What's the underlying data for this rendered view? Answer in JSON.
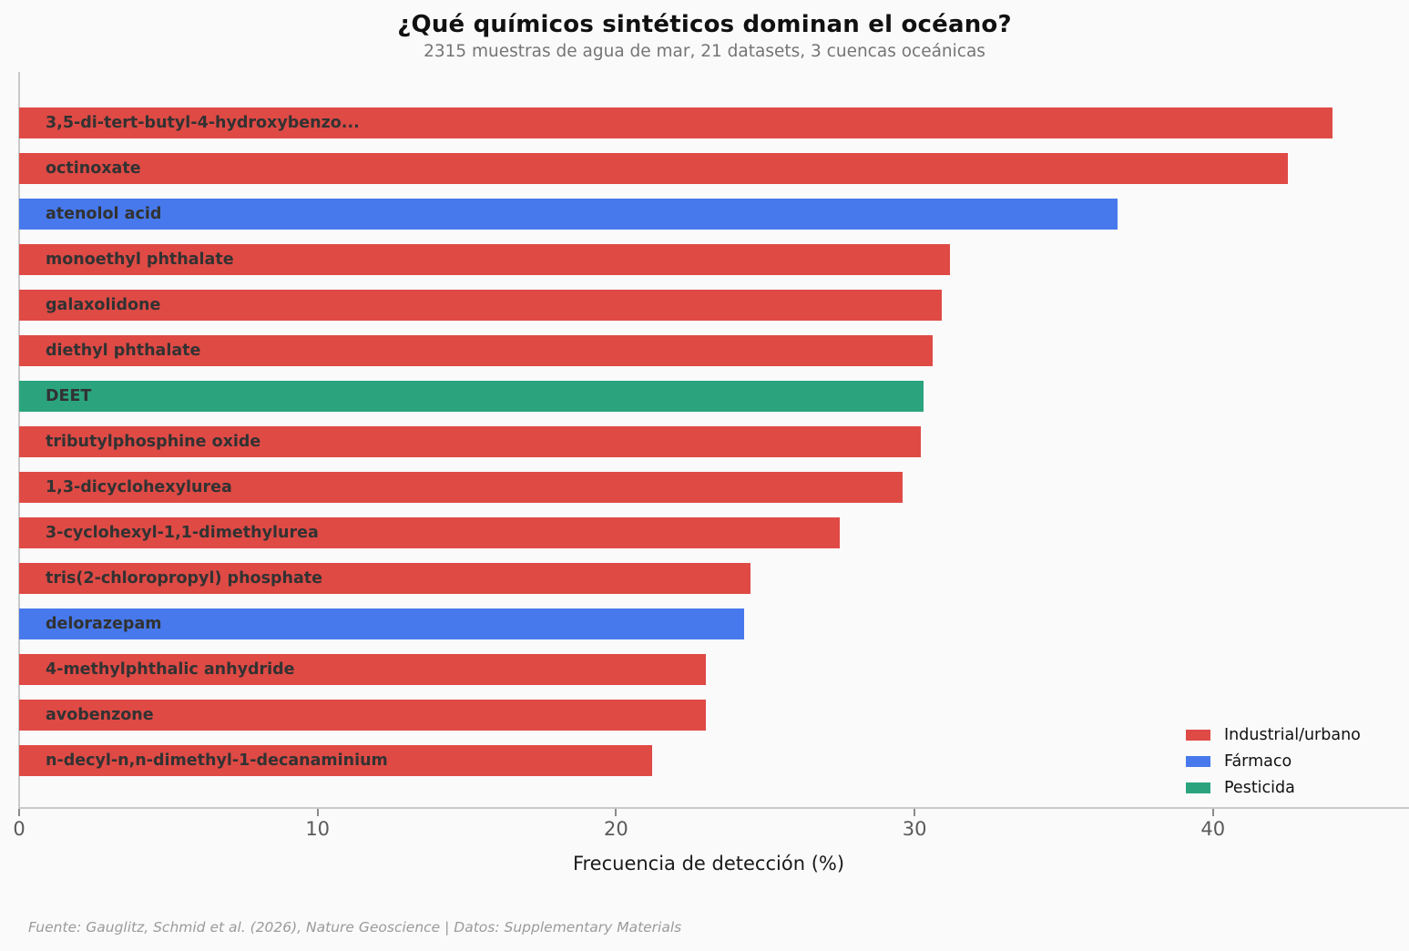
{
  "title": "¿Qué químicos sintéticos dominan el océano?",
  "subtitle": "2315 muestras de agua de mar, 21 datasets, 3 cuencas oceánicas",
  "footer": "Fuente: Gauglitz, Schmid et al. (2026), Nature Geoscience | Datos: Supplementary Materials",
  "colors": {
    "background": "#fafafa",
    "industrial_urbano": "#df4a45",
    "farmaco": "#4779ec",
    "pesticida": "#2ba47e",
    "bar_label": "#323232",
    "spine": "#c9c9c9",
    "tick_label": "#5a5a5a"
  },
  "legend": {
    "items": [
      {
        "label": "Industrial/urbano",
        "color": "#df4a45"
      },
      {
        "label": "Fármaco",
        "color": "#4779ec"
      },
      {
        "label": "Pesticida",
        "color": "#2ba47e"
      }
    ],
    "position": "lower right"
  },
  "chart_data": {
    "type": "bar",
    "orientation": "horizontal",
    "title": "¿Qué químicos sintéticos dominan el océano?",
    "subtitle": "2315 muestras de agua de mar, 21 datasets, 3 cuencas oceánicas",
    "xlabel": "Frecuencia de detección (%)",
    "ylabel": "",
    "xlim": [
      0,
      46.6
    ],
    "xticks": [
      0,
      10,
      20,
      30,
      40
    ],
    "grid": false,
    "legend_position": "lower right",
    "bars": [
      {
        "label": "3,5-di-tert-butyl-4-hydroxybenzo...",
        "value": 44.0,
        "category": "Industrial/urbano"
      },
      {
        "label": "octinoxate",
        "value": 42.5,
        "category": "Industrial/urbano"
      },
      {
        "label": "atenolol acid",
        "value": 36.8,
        "category": "Fármaco"
      },
      {
        "label": "monoethyl phthalate",
        "value": 31.2,
        "category": "Industrial/urbano"
      },
      {
        "label": "galaxolidone",
        "value": 30.9,
        "category": "Industrial/urbano"
      },
      {
        "label": "diethyl phthalate",
        "value": 30.6,
        "category": "Industrial/urbano"
      },
      {
        "label": "DEET",
        "value": 30.3,
        "category": "Pesticida"
      },
      {
        "label": "tributylphosphine oxide",
        "value": 30.2,
        "category": "Industrial/urbano"
      },
      {
        "label": "1,3-dicyclohexylurea",
        "value": 29.6,
        "category": "Industrial/urbano"
      },
      {
        "label": "3-cyclohexyl-1,1-dimethylurea",
        "value": 27.5,
        "category": "Industrial/urbano"
      },
      {
        "label": "tris(2-chloropropyl) phosphate",
        "value": 24.5,
        "category": "Industrial/urbano"
      },
      {
        "label": "delorazepam",
        "value": 24.3,
        "category": "Fármaco"
      },
      {
        "label": "4-methylphthalic anhydride",
        "value": 23.0,
        "category": "Industrial/urbano"
      },
      {
        "label": "avobenzone",
        "value": 23.0,
        "category": "Industrial/urbano"
      },
      {
        "label": "n-decyl-n,n-dimethyl-1-decanaminium",
        "value": 21.2,
        "category": "Industrial/urbano"
      }
    ]
  }
}
